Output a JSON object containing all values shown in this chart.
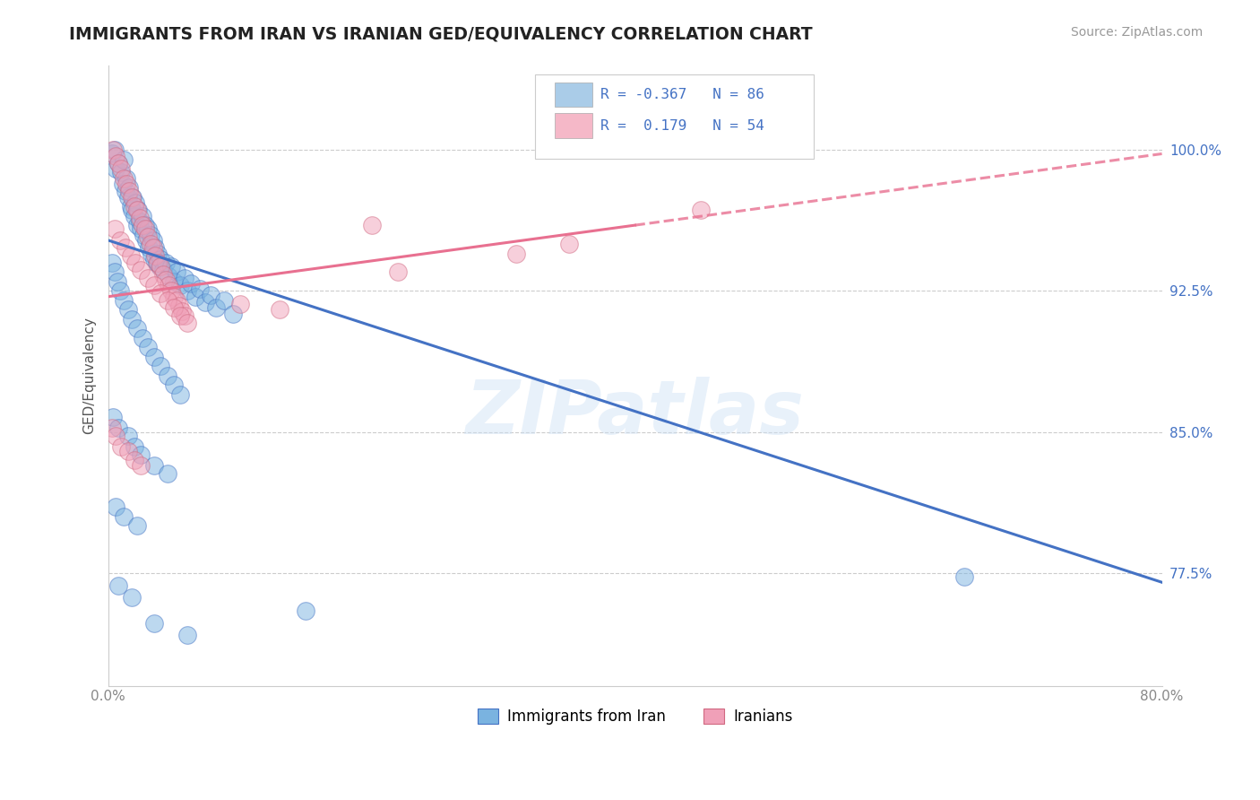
{
  "title": "IMMIGRANTS FROM IRAN VS IRANIAN GED/EQUIVALENCY CORRELATION CHART",
  "source": "Source: ZipAtlas.com",
  "ylabel": "GED/Equivalency",
  "ytick_values": [
    1.0,
    0.925,
    0.85,
    0.775
  ],
  "xmin": 0.0,
  "xmax": 0.8,
  "ymin": 0.715,
  "ymax": 1.045,
  "legend_entries": [
    {
      "label": "R = -0.367   N = 86",
      "color": "#aacce8"
    },
    {
      "label": "R =  0.179   N = 54",
      "color": "#f5b8c8"
    }
  ],
  "legend_bottom": [
    {
      "label": "Immigrants from Iran",
      "color": "#aacce8"
    },
    {
      "label": "Iranians",
      "color": "#f5b8c8"
    }
  ],
  "blue_line": {
    "x0": 0.0,
    "y0": 0.952,
    "x1": 0.8,
    "y1": 0.77
  },
  "pink_line_solid": {
    "x0": 0.0,
    "y0": 0.922,
    "x1": 0.4,
    "y1": 0.96
  },
  "pink_line_dashed": {
    "x0": 0.4,
    "y0": 0.96,
    "x1": 0.8,
    "y1": 0.998
  },
  "watermark": "ZIPatlas",
  "blue_scatter": [
    [
      0.003,
      0.998
    ],
    [
      0.005,
      1.0
    ],
    [
      0.006,
      0.99
    ],
    [
      0.008,
      0.993
    ],
    [
      0.01,
      0.988
    ],
    [
      0.011,
      0.982
    ],
    [
      0.012,
      0.995
    ],
    [
      0.013,
      0.978
    ],
    [
      0.014,
      0.985
    ],
    [
      0.015,
      0.975
    ],
    [
      0.016,
      0.98
    ],
    [
      0.017,
      0.97
    ],
    [
      0.018,
      0.968
    ],
    [
      0.019,
      0.975
    ],
    [
      0.02,
      0.965
    ],
    [
      0.021,
      0.972
    ],
    [
      0.022,
      0.96
    ],
    [
      0.023,
      0.968
    ],
    [
      0.024,
      0.962
    ],
    [
      0.025,
      0.958
    ],
    [
      0.026,
      0.965
    ],
    [
      0.027,
      0.955
    ],
    [
      0.028,
      0.96
    ],
    [
      0.029,
      0.952
    ],
    [
      0.03,
      0.958
    ],
    [
      0.031,
      0.948
    ],
    [
      0.032,
      0.955
    ],
    [
      0.033,
      0.945
    ],
    [
      0.034,
      0.952
    ],
    [
      0.035,
      0.942
    ],
    [
      0.036,
      0.948
    ],
    [
      0.037,
      0.94
    ],
    [
      0.038,
      0.945
    ],
    [
      0.039,
      0.938
    ],
    [
      0.04,
      0.942
    ],
    [
      0.042,
      0.936
    ],
    [
      0.044,
      0.94
    ],
    [
      0.046,
      0.933
    ],
    [
      0.048,
      0.938
    ],
    [
      0.05,
      0.93
    ],
    [
      0.052,
      0.935
    ],
    [
      0.055,
      0.928
    ],
    [
      0.058,
      0.932
    ],
    [
      0.06,
      0.925
    ],
    [
      0.063,
      0.929
    ],
    [
      0.066,
      0.922
    ],
    [
      0.07,
      0.926
    ],
    [
      0.074,
      0.919
    ],
    [
      0.078,
      0.923
    ],
    [
      0.082,
      0.916
    ],
    [
      0.088,
      0.92
    ],
    [
      0.095,
      0.913
    ],
    [
      0.003,
      0.94
    ],
    [
      0.005,
      0.935
    ],
    [
      0.007,
      0.93
    ],
    [
      0.009,
      0.925
    ],
    [
      0.012,
      0.92
    ],
    [
      0.015,
      0.915
    ],
    [
      0.018,
      0.91
    ],
    [
      0.022,
      0.905
    ],
    [
      0.026,
      0.9
    ],
    [
      0.03,
      0.895
    ],
    [
      0.035,
      0.89
    ],
    [
      0.04,
      0.885
    ],
    [
      0.045,
      0.88
    ],
    [
      0.05,
      0.875
    ],
    [
      0.055,
      0.87
    ],
    [
      0.004,
      0.858
    ],
    [
      0.008,
      0.852
    ],
    [
      0.015,
      0.848
    ],
    [
      0.02,
      0.842
    ],
    [
      0.025,
      0.838
    ],
    [
      0.035,
      0.832
    ],
    [
      0.045,
      0.828
    ],
    [
      0.006,
      0.81
    ],
    [
      0.012,
      0.805
    ],
    [
      0.022,
      0.8
    ],
    [
      0.008,
      0.768
    ],
    [
      0.018,
      0.762
    ],
    [
      0.15,
      0.755
    ],
    [
      0.035,
      0.748
    ],
    [
      0.06,
      0.742
    ],
    [
      0.65,
      0.773
    ]
  ],
  "pink_scatter": [
    [
      0.004,
      1.0
    ],
    [
      0.006,
      0.997
    ],
    [
      0.008,
      0.993
    ],
    [
      0.01,
      0.99
    ],
    [
      0.012,
      0.985
    ],
    [
      0.014,
      0.982
    ],
    [
      0.016,
      0.978
    ],
    [
      0.018,
      0.975
    ],
    [
      0.02,
      0.97
    ],
    [
      0.022,
      0.968
    ],
    [
      0.024,
      0.964
    ],
    [
      0.026,
      0.96
    ],
    [
      0.028,
      0.958
    ],
    [
      0.03,
      0.954
    ],
    [
      0.032,
      0.95
    ],
    [
      0.034,
      0.948
    ],
    [
      0.036,
      0.944
    ],
    [
      0.038,
      0.94
    ],
    [
      0.04,
      0.938
    ],
    [
      0.042,
      0.934
    ],
    [
      0.044,
      0.931
    ],
    [
      0.046,
      0.928
    ],
    [
      0.048,
      0.925
    ],
    [
      0.05,
      0.922
    ],
    [
      0.052,
      0.92
    ],
    [
      0.054,
      0.917
    ],
    [
      0.056,
      0.914
    ],
    [
      0.058,
      0.912
    ],
    [
      0.005,
      0.958
    ],
    [
      0.009,
      0.952
    ],
    [
      0.013,
      0.948
    ],
    [
      0.017,
      0.944
    ],
    [
      0.021,
      0.94
    ],
    [
      0.025,
      0.936
    ],
    [
      0.03,
      0.932
    ],
    [
      0.035,
      0.928
    ],
    [
      0.04,
      0.924
    ],
    [
      0.045,
      0.92
    ],
    [
      0.05,
      0.916
    ],
    [
      0.055,
      0.912
    ],
    [
      0.06,
      0.908
    ],
    [
      0.003,
      0.852
    ],
    [
      0.006,
      0.848
    ],
    [
      0.01,
      0.842
    ],
    [
      0.015,
      0.84
    ],
    [
      0.02,
      0.835
    ],
    [
      0.025,
      0.832
    ],
    [
      0.2,
      0.96
    ],
    [
      0.35,
      0.95
    ],
    [
      0.45,
      0.968
    ],
    [
      0.1,
      0.918
    ],
    [
      0.13,
      0.915
    ],
    [
      0.22,
      0.935
    ],
    [
      0.31,
      0.945
    ]
  ],
  "blue_color": "#7ab3e0",
  "pink_color": "#f0a0b8",
  "blue_line_color": "#4472c4",
  "pink_line_color": "#e87090",
  "grid_color": "#cccccc",
  "background_color": "#ffffff"
}
